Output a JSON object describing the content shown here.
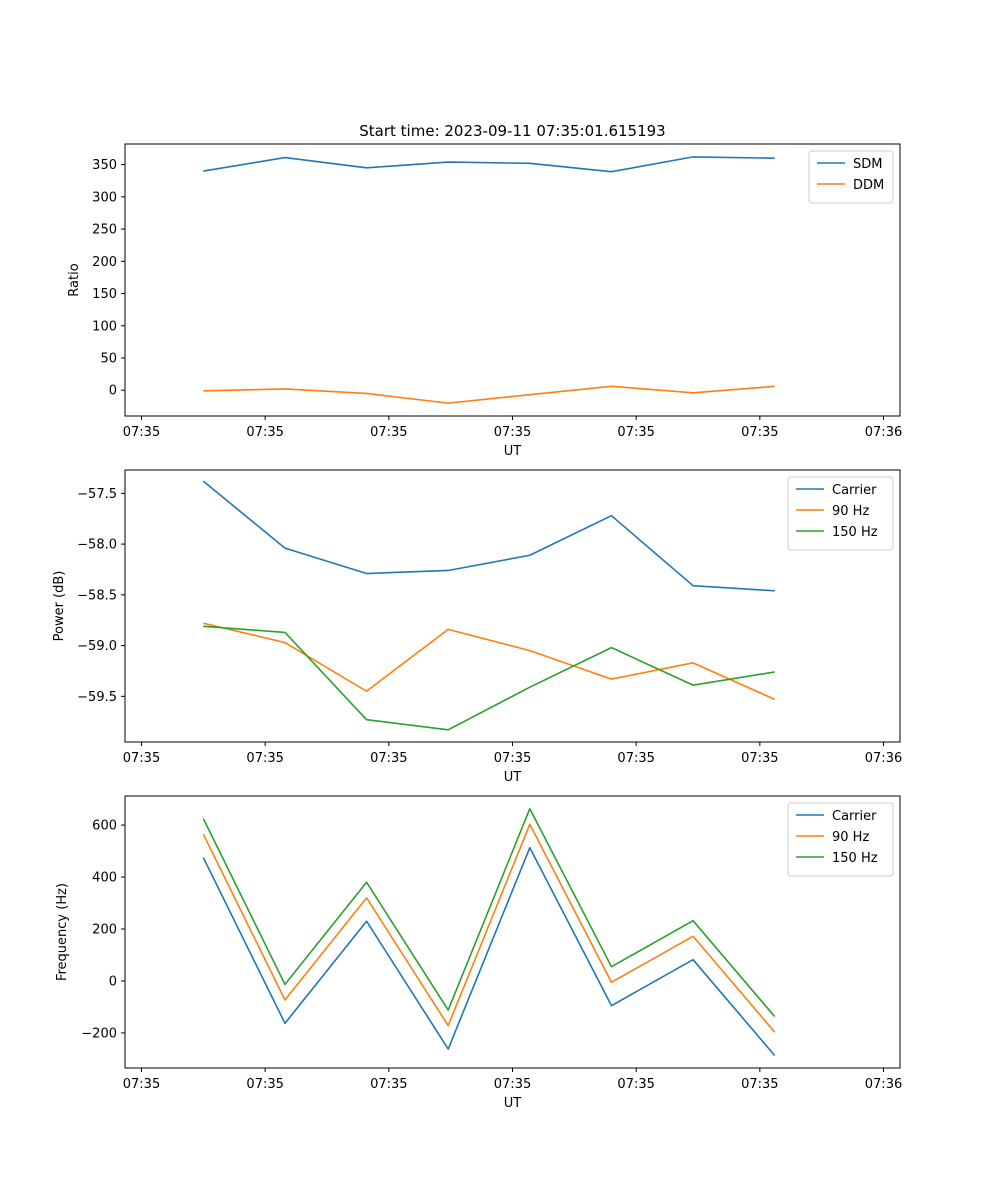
{
  "chart_data": [
    {
      "type": "line",
      "title": "Start time: 2023-09-11 07:35:01.615193",
      "xlabel": "UT",
      "ylabel": "Ratio",
      "xlim": [
        -0.2,
        9.2
      ],
      "ylim": [
        -40,
        382
      ],
      "xticks": [
        0,
        1.5,
        3,
        4.5,
        6,
        7.5,
        9
      ],
      "xtick_labels": [
        "07:35",
        "07:35",
        "07:35",
        "07:35",
        "07:35",
        "07:35",
        "07:36"
      ],
      "yticks": [
        0,
        50,
        100,
        150,
        200,
        250,
        300,
        350
      ],
      "ytick_labels": [
        "0",
        "50",
        "100",
        "150",
        "200",
        "250",
        "300",
        "350"
      ],
      "legend_position": "top-right",
      "x": [
        0.75,
        1.74,
        2.73,
        3.72,
        4.71,
        5.7,
        6.69,
        7.68
      ],
      "series": [
        {
          "name": "SDM",
          "color": "#1f77b4",
          "values": [
            340,
            361,
            345,
            354,
            352,
            339,
            362,
            360
          ]
        },
        {
          "name": "DDM",
          "color": "#ff7f0e",
          "values": [
            -1,
            2,
            -5,
            -20,
            -7,
            6,
            -4,
            6
          ]
        }
      ]
    },
    {
      "type": "line",
      "title": "",
      "xlabel": "UT",
      "ylabel": "Power (dB)",
      "xlim": [
        -0.2,
        9.2
      ],
      "ylim": [
        -59.95,
        -57.27
      ],
      "xticks": [
        0,
        1.5,
        3,
        4.5,
        6,
        7.5,
        9
      ],
      "xtick_labels": [
        "07:35",
        "07:35",
        "07:35",
        "07:35",
        "07:35",
        "07:35",
        "07:36"
      ],
      "yticks": [
        -59.5,
        -59.0,
        -58.5,
        -58.0,
        -57.5
      ],
      "ytick_labels": [
        "−59.5",
        "−59.0",
        "−58.5",
        "−58.0",
        "−57.5"
      ],
      "legend_position": "top-right",
      "x": [
        0.75,
        1.74,
        2.73,
        3.72,
        4.71,
        5.7,
        6.69,
        7.68
      ],
      "series": [
        {
          "name": "Carrier",
          "color": "#1f77b4",
          "values": [
            -57.38,
            -58.04,
            -58.29,
            -58.26,
            -58.11,
            -57.72,
            -58.41,
            -58.46
          ]
        },
        {
          "name": "90 Hz",
          "color": "#ff7f0e",
          "values": [
            -58.78,
            -58.97,
            -59.45,
            -58.84,
            -59.05,
            -59.33,
            -59.17,
            -59.53
          ]
        },
        {
          "name": "150 Hz",
          "color": "#2ca02c",
          "values": [
            -58.81,
            -58.87,
            -59.73,
            -59.83,
            -59.41,
            -59.02,
            -59.39,
            -59.26
          ]
        }
      ]
    },
    {
      "type": "line",
      "title": "",
      "xlabel": "UT",
      "ylabel": "Frequency (Hz)",
      "xlim": [
        -0.2,
        9.2
      ],
      "ylim": [
        -335,
        712
      ],
      "xticks": [
        0,
        1.5,
        3,
        4.5,
        6,
        7.5,
        9
      ],
      "xtick_labels": [
        "07:35",
        "07:35",
        "07:35",
        "07:35",
        "07:35",
        "07:35",
        "07:36"
      ],
      "yticks": [
        -200,
        0,
        200,
        400,
        600
      ],
      "ytick_labels": [
        "−200",
        "0",
        "200",
        "400",
        "600"
      ],
      "legend_position": "top-right",
      "x": [
        0.75,
        1.74,
        2.73,
        3.72,
        4.71,
        5.7,
        6.69,
        7.68
      ],
      "series": [
        {
          "name": "Carrier",
          "color": "#1f77b4",
          "values": [
            475,
            -163,
            230,
            -262,
            513,
            -95,
            82,
            -287
          ]
        },
        {
          "name": "90 Hz",
          "color": "#ff7f0e",
          "values": [
            565,
            -73,
            320,
            -172,
            603,
            -5,
            172,
            -197
          ]
        },
        {
          "name": "150 Hz",
          "color": "#2ca02c",
          "values": [
            625,
            -13,
            380,
            -112,
            663,
            55,
            232,
            -137
          ]
        }
      ]
    }
  ]
}
